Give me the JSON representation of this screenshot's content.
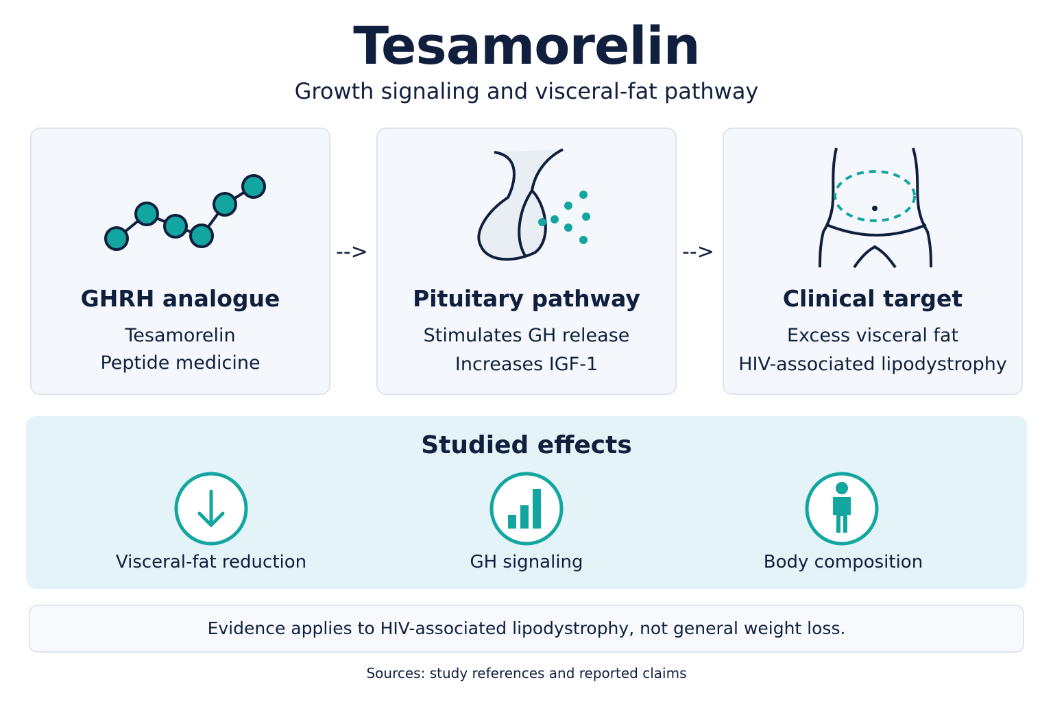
{
  "header": {
    "title": "Tesamorelin",
    "subtitle": "Growth signaling and visceral-fat pathway"
  },
  "cards": [
    {
      "title": "GHRH analogue",
      "lines": [
        "Tesamorelin",
        "Peptide medicine"
      ]
    },
    {
      "title": "Pituitary pathway",
      "lines": [
        "Stimulates GH release",
        "Increases IGF-1"
      ]
    },
    {
      "title": "Clinical target",
      "lines": [
        "Excess visceral fat",
        "HIV-associated lipodystrophy"
      ]
    }
  ],
  "effects": {
    "title": "Studied effects",
    "items": [
      "Visceral-fat reduction",
      "GH signaling",
      "Body composition"
    ]
  },
  "note": "Evidence applies to HIV-associated lipodystrophy, not general weight loss.",
  "sources": "Sources: study references and reported claims"
}
